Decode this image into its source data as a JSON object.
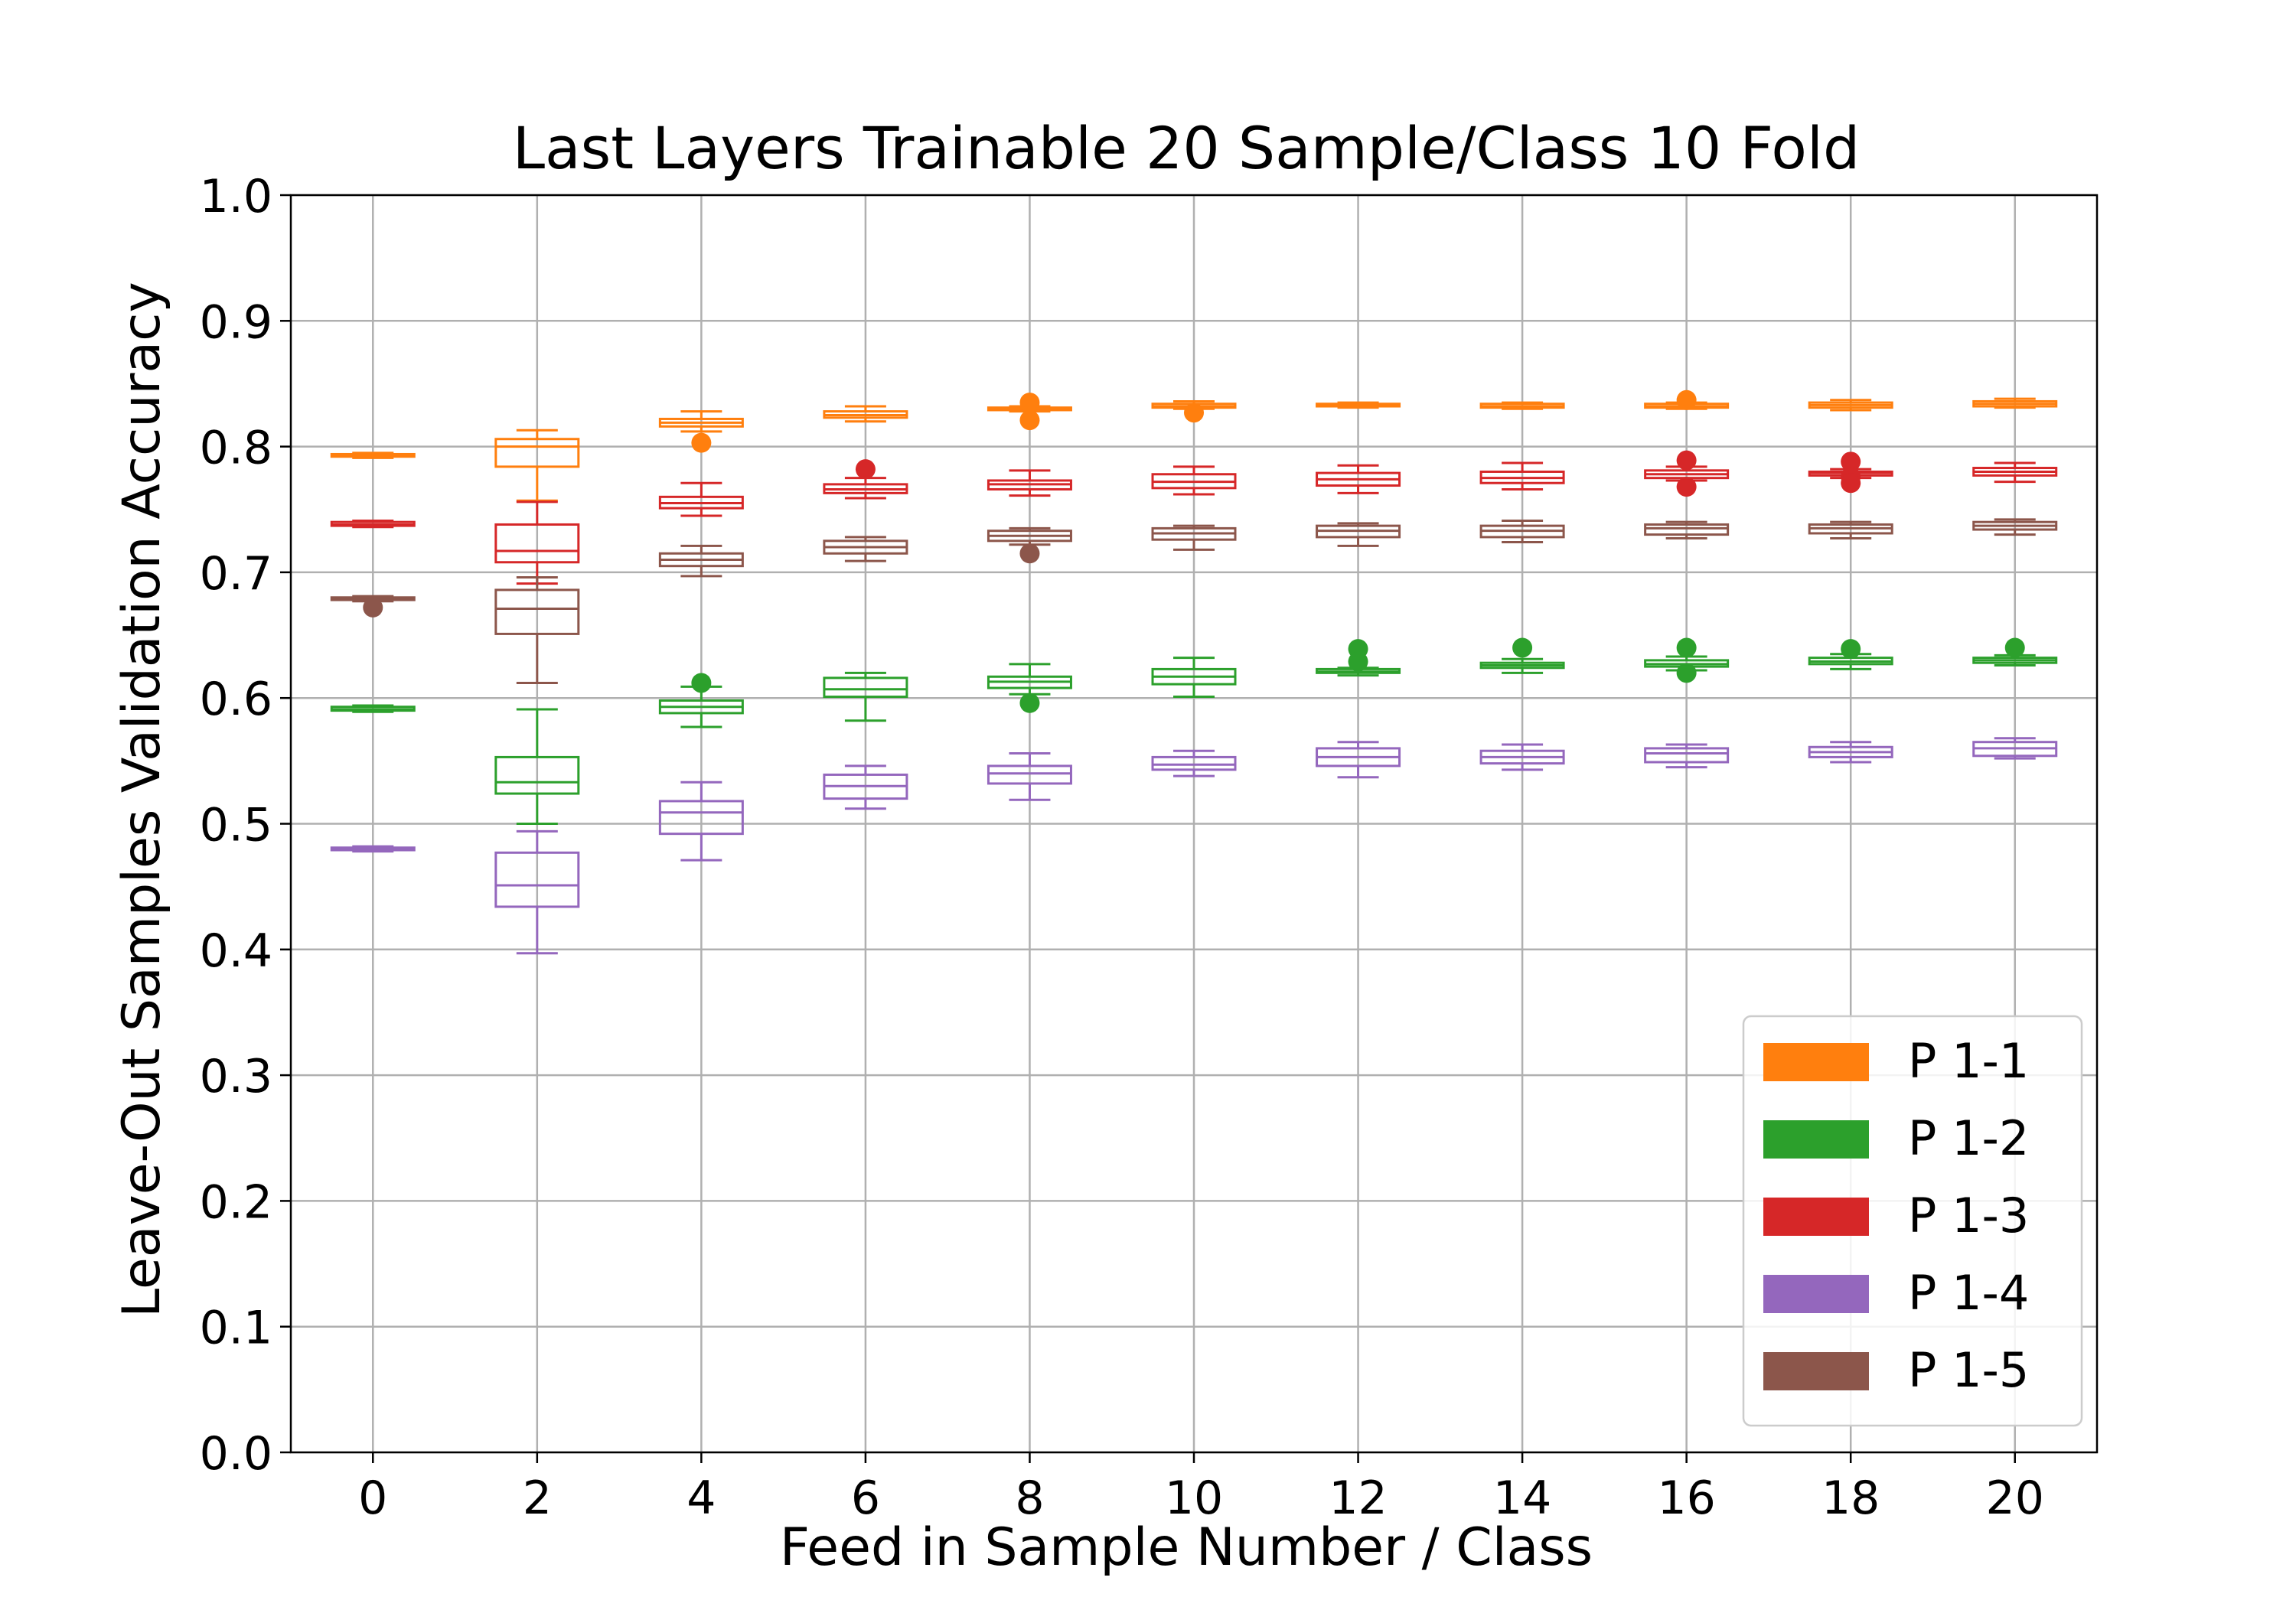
{
  "chart_data": {
    "type": "box",
    "title": "Last Layers Trainable 20 Sample/Class 10 Fold",
    "xlabel": "Feed in Sample Number / Class",
    "ylabel": "Leave-Out Samples Validation Accuracy",
    "x_ticks": [
      0,
      2,
      4,
      6,
      8,
      10,
      12,
      14,
      16,
      18,
      20
    ],
    "y_ticks": [
      "0.0",
      "0.1",
      "0.2",
      "0.3",
      "0.4",
      "0.5",
      "0.6",
      "0.7",
      "0.8",
      "0.9",
      "1.0"
    ],
    "xlim": [
      -1,
      21
    ],
    "ylim": [
      0,
      1.0
    ],
    "grid": true,
    "legend_position": "lower-right",
    "series": [
      {
        "name": "P 1-1",
        "color": "#ff7f0e",
        "boxes": [
          {
            "x": 0,
            "whislo": 0.791,
            "q1": 0.792,
            "med": 0.793,
            "q3": 0.794,
            "whishi": 0.795,
            "fliers": []
          },
          {
            "x": 2,
            "whislo": 0.757,
            "q1": 0.784,
            "med": 0.8,
            "q3": 0.806,
            "whishi": 0.813,
            "fliers": []
          },
          {
            "x": 4,
            "whislo": 0.812,
            "q1": 0.816,
            "med": 0.819,
            "q3": 0.822,
            "whishi": 0.828,
            "fliers": [
              0.803
            ]
          },
          {
            "x": 6,
            "whislo": 0.82,
            "q1": 0.823,
            "med": 0.825,
            "q3": 0.828,
            "whishi": 0.832,
            "fliers": []
          },
          {
            "x": 8,
            "whislo": 0.828,
            "q1": 0.829,
            "med": 0.83,
            "q3": 0.831,
            "whishi": 0.832,
            "fliers": [
              0.821,
              0.835
            ]
          },
          {
            "x": 10,
            "whislo": 0.83,
            "q1": 0.831,
            "med": 0.832,
            "q3": 0.834,
            "whishi": 0.836,
            "fliers": [
              0.827
            ]
          },
          {
            "x": 12,
            "whislo": 0.831,
            "q1": 0.832,
            "med": 0.833,
            "q3": 0.834,
            "whishi": 0.835,
            "fliers": []
          },
          {
            "x": 14,
            "whislo": 0.83,
            "q1": 0.831,
            "med": 0.832,
            "q3": 0.834,
            "whishi": 0.835,
            "fliers": []
          },
          {
            "x": 16,
            "whislo": 0.83,
            "q1": 0.831,
            "med": 0.832,
            "q3": 0.834,
            "whishi": 0.835,
            "fliers": [
              0.837
            ]
          },
          {
            "x": 18,
            "whislo": 0.829,
            "q1": 0.831,
            "med": 0.833,
            "q3": 0.835,
            "whishi": 0.837,
            "fliers": []
          },
          {
            "x": 20,
            "whislo": 0.831,
            "q1": 0.832,
            "med": 0.834,
            "q3": 0.836,
            "whishi": 0.838,
            "fliers": []
          }
        ]
      },
      {
        "name": "P 1-2",
        "color": "#2ca02c",
        "boxes": [
          {
            "x": 0,
            "whislo": 0.589,
            "q1": 0.59,
            "med": 0.591,
            "q3": 0.593,
            "whishi": 0.594,
            "fliers": []
          },
          {
            "x": 2,
            "whislo": 0.5,
            "q1": 0.524,
            "med": 0.533,
            "q3": 0.553,
            "whishi": 0.591,
            "fliers": []
          },
          {
            "x": 4,
            "whislo": 0.577,
            "q1": 0.588,
            "med": 0.593,
            "q3": 0.598,
            "whishi": 0.609,
            "fliers": [
              0.612
            ]
          },
          {
            "x": 6,
            "whislo": 0.582,
            "q1": 0.601,
            "med": 0.607,
            "q3": 0.616,
            "whishi": 0.62,
            "fliers": []
          },
          {
            "x": 8,
            "whislo": 0.603,
            "q1": 0.608,
            "med": 0.613,
            "q3": 0.617,
            "whishi": 0.627,
            "fliers": [
              0.596
            ]
          },
          {
            "x": 10,
            "whislo": 0.601,
            "q1": 0.611,
            "med": 0.617,
            "q3": 0.623,
            "whishi": 0.632,
            "fliers": []
          },
          {
            "x": 12,
            "whislo": 0.618,
            "q1": 0.62,
            "med": 0.621,
            "q3": 0.623,
            "whishi": 0.624,
            "fliers": [
              0.639,
              0.629
            ]
          },
          {
            "x": 14,
            "whislo": 0.62,
            "q1": 0.624,
            "med": 0.626,
            "q3": 0.628,
            "whishi": 0.631,
            "fliers": [
              0.64
            ]
          },
          {
            "x": 16,
            "whislo": 0.622,
            "q1": 0.625,
            "med": 0.627,
            "q3": 0.63,
            "whishi": 0.633,
            "fliers": [
              0.64,
              0.62
            ]
          },
          {
            "x": 18,
            "whislo": 0.623,
            "q1": 0.627,
            "med": 0.629,
            "q3": 0.632,
            "whishi": 0.635,
            "fliers": [
              0.639
            ]
          },
          {
            "x": 20,
            "whislo": 0.626,
            "q1": 0.628,
            "med": 0.63,
            "q3": 0.632,
            "whishi": 0.634,
            "fliers": [
              0.64
            ]
          }
        ]
      },
      {
        "name": "P 1-3",
        "color": "#d62728",
        "boxes": [
          {
            "x": 0,
            "whislo": 0.736,
            "q1": 0.737,
            "med": 0.738,
            "q3": 0.74,
            "whishi": 0.741,
            "fliers": []
          },
          {
            "x": 2,
            "whislo": 0.691,
            "q1": 0.708,
            "med": 0.717,
            "q3": 0.738,
            "whishi": 0.756,
            "fliers": []
          },
          {
            "x": 4,
            "whislo": 0.745,
            "q1": 0.751,
            "med": 0.755,
            "q3": 0.76,
            "whishi": 0.771,
            "fliers": []
          },
          {
            "x": 6,
            "whislo": 0.759,
            "q1": 0.763,
            "med": 0.766,
            "q3": 0.77,
            "whishi": 0.775,
            "fliers": [
              0.782
            ]
          },
          {
            "x": 8,
            "whislo": 0.761,
            "q1": 0.766,
            "med": 0.77,
            "q3": 0.773,
            "whishi": 0.781,
            "fliers": []
          },
          {
            "x": 10,
            "whislo": 0.762,
            "q1": 0.767,
            "med": 0.772,
            "q3": 0.778,
            "whishi": 0.784,
            "fliers": []
          },
          {
            "x": 12,
            "whislo": 0.763,
            "q1": 0.769,
            "med": 0.774,
            "q3": 0.779,
            "whishi": 0.785,
            "fliers": []
          },
          {
            "x": 14,
            "whislo": 0.766,
            "q1": 0.771,
            "med": 0.775,
            "q3": 0.78,
            "whishi": 0.787,
            "fliers": []
          },
          {
            "x": 16,
            "whislo": 0.773,
            "q1": 0.775,
            "med": 0.778,
            "q3": 0.781,
            "whishi": 0.784,
            "fliers": [
              0.789,
              0.768
            ]
          },
          {
            "x": 18,
            "whislo": 0.775,
            "q1": 0.777,
            "med": 0.779,
            "q3": 0.78,
            "whishi": 0.782,
            "fliers": [
              0.788,
              0.776,
              0.771
            ]
          },
          {
            "x": 20,
            "whislo": 0.772,
            "q1": 0.777,
            "med": 0.78,
            "q3": 0.783,
            "whishi": 0.787,
            "fliers": []
          }
        ]
      },
      {
        "name": "P 1-4",
        "color": "#9467bd",
        "boxes": [
          {
            "x": 0,
            "whislo": 0.478,
            "q1": 0.479,
            "med": 0.48,
            "q3": 0.481,
            "whishi": 0.482,
            "fliers": []
          },
          {
            "x": 2,
            "whislo": 0.397,
            "q1": 0.434,
            "med": 0.451,
            "q3": 0.477,
            "whishi": 0.494,
            "fliers": []
          },
          {
            "x": 4,
            "whislo": 0.471,
            "q1": 0.492,
            "med": 0.509,
            "q3": 0.518,
            "whishi": 0.533,
            "fliers": []
          },
          {
            "x": 6,
            "whislo": 0.512,
            "q1": 0.52,
            "med": 0.53,
            "q3": 0.539,
            "whishi": 0.546,
            "fliers": []
          },
          {
            "x": 8,
            "whislo": 0.519,
            "q1": 0.532,
            "med": 0.54,
            "q3": 0.546,
            "whishi": 0.556,
            "fliers": []
          },
          {
            "x": 10,
            "whislo": 0.538,
            "q1": 0.543,
            "med": 0.547,
            "q3": 0.553,
            "whishi": 0.558,
            "fliers": []
          },
          {
            "x": 12,
            "whislo": 0.537,
            "q1": 0.546,
            "med": 0.553,
            "q3": 0.56,
            "whishi": 0.565,
            "fliers": []
          },
          {
            "x": 14,
            "whislo": 0.543,
            "q1": 0.548,
            "med": 0.553,
            "q3": 0.558,
            "whishi": 0.563,
            "fliers": []
          },
          {
            "x": 16,
            "whislo": 0.545,
            "q1": 0.549,
            "med": 0.556,
            "q3": 0.56,
            "whishi": 0.563,
            "fliers": []
          },
          {
            "x": 18,
            "whislo": 0.549,
            "q1": 0.553,
            "med": 0.557,
            "q3": 0.561,
            "whishi": 0.565,
            "fliers": []
          },
          {
            "x": 20,
            "whislo": 0.552,
            "q1": 0.554,
            "med": 0.56,
            "q3": 0.565,
            "whishi": 0.568,
            "fliers": []
          }
        ]
      },
      {
        "name": "P 1-5",
        "color": "#8c564b",
        "boxes": [
          {
            "x": 0,
            "whislo": 0.677,
            "q1": 0.678,
            "med": 0.679,
            "q3": 0.68,
            "whishi": 0.681,
            "fliers": [
              0.672
            ]
          },
          {
            "x": 2,
            "whislo": 0.612,
            "q1": 0.651,
            "med": 0.671,
            "q3": 0.686,
            "whishi": 0.696,
            "fliers": []
          },
          {
            "x": 4,
            "whislo": 0.697,
            "q1": 0.705,
            "med": 0.71,
            "q3": 0.715,
            "whishi": 0.721,
            "fliers": []
          },
          {
            "x": 6,
            "whislo": 0.709,
            "q1": 0.715,
            "med": 0.72,
            "q3": 0.725,
            "whishi": 0.728,
            "fliers": []
          },
          {
            "x": 8,
            "whislo": 0.722,
            "q1": 0.725,
            "med": 0.729,
            "q3": 0.733,
            "whishi": 0.735,
            "fliers": [
              0.715
            ]
          },
          {
            "x": 10,
            "whislo": 0.718,
            "q1": 0.726,
            "med": 0.731,
            "q3": 0.735,
            "whishi": 0.737,
            "fliers": []
          },
          {
            "x": 12,
            "whislo": 0.721,
            "q1": 0.728,
            "med": 0.733,
            "q3": 0.737,
            "whishi": 0.739,
            "fliers": []
          },
          {
            "x": 14,
            "whislo": 0.724,
            "q1": 0.728,
            "med": 0.733,
            "q3": 0.737,
            "whishi": 0.741,
            "fliers": []
          },
          {
            "x": 16,
            "whislo": 0.727,
            "q1": 0.73,
            "med": 0.735,
            "q3": 0.738,
            "whishi": 0.74,
            "fliers": []
          },
          {
            "x": 18,
            "whislo": 0.727,
            "q1": 0.731,
            "med": 0.735,
            "q3": 0.738,
            "whishi": 0.74,
            "fliers": []
          },
          {
            "x": 20,
            "whislo": 0.73,
            "q1": 0.734,
            "med": 0.737,
            "q3": 0.74,
            "whishi": 0.742,
            "fliers": []
          }
        ]
      }
    ]
  }
}
